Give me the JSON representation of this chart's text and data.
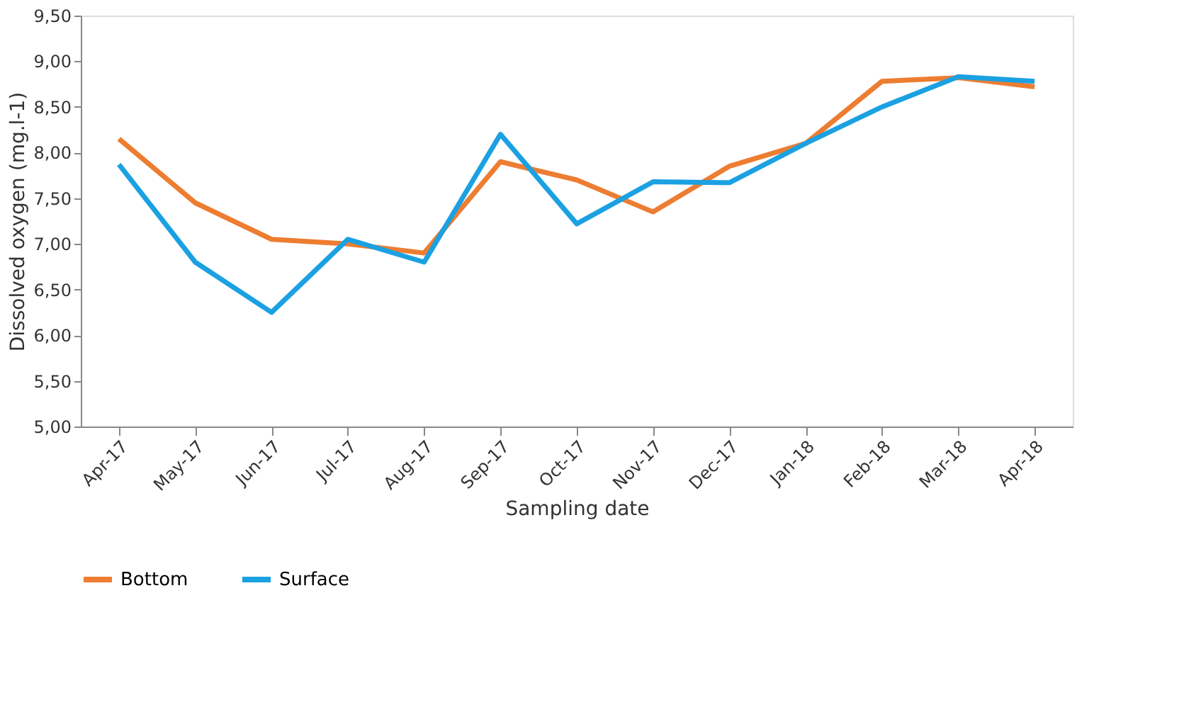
{
  "chart_data": {
    "type": "line",
    "xlabel": "Sampling date",
    "ylabel": "Dissolved oxygen (mg.l-1)",
    "categories": [
      "Apr-17",
      "May-17",
      "Jun-17",
      "Jul-17",
      "Aug-17",
      "Sep-17",
      "Oct-17",
      "Nov-17",
      "Dec-17",
      "Jan-18",
      "Feb-18",
      "Mar-18",
      "Apr-18"
    ],
    "series": [
      {
        "name": "Bottom",
        "color": "#ed7d31",
        "values": [
          8.15,
          7.45,
          7.05,
          7.0,
          6.9,
          7.9,
          7.7,
          7.35,
          7.85,
          8.1,
          8.78,
          8.82,
          8.72
        ]
      },
      {
        "name": "Surface",
        "color": "#1ba1e2",
        "values": [
          7.87,
          6.8,
          6.25,
          7.05,
          6.8,
          8.2,
          7.22,
          7.68,
          7.67,
          8.1,
          8.5,
          8.83,
          8.78
        ]
      }
    ],
    "ylim": [
      5.0,
      9.5
    ],
    "yticks": [
      {
        "value": 5.0,
        "label": "5,00"
      },
      {
        "value": 5.5,
        "label": "5,50"
      },
      {
        "value": 6.0,
        "label": "6,00"
      },
      {
        "value": 6.5,
        "label": "6,50"
      },
      {
        "value": 7.0,
        "label": "7,00"
      },
      {
        "value": 7.5,
        "label": "7,50"
      },
      {
        "value": 8.0,
        "label": "8,00"
      },
      {
        "value": 8.5,
        "label": "8,50"
      },
      {
        "value": 9.0,
        "label": "9,00"
      },
      {
        "value": 9.5,
        "label": "9,50"
      }
    ],
    "grid": false,
    "legend": "bottom",
    "line_style": "solid",
    "marker": "none"
  }
}
